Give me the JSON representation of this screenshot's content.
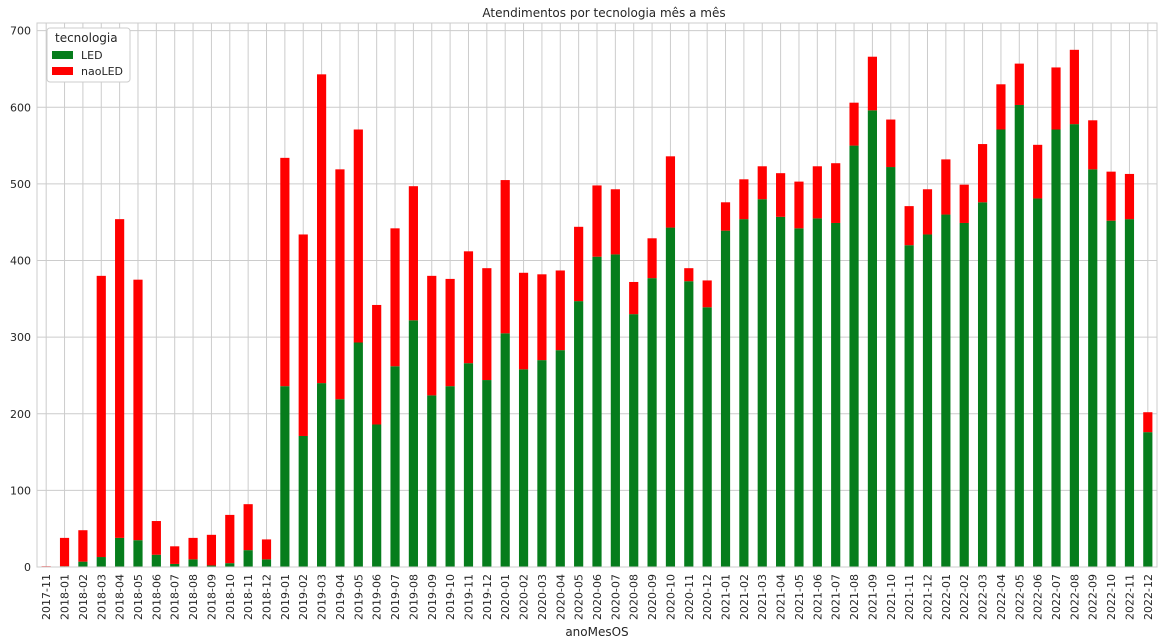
{
  "chart_data": {
    "type": "bar",
    "stacked": true,
    "title": "Atendimentos por tecnologia mês a mês",
    "xlabel": "anoMesOS",
    "ylabel": "",
    "ylim": [
      0,
      710
    ],
    "yticks": [
      0,
      100,
      200,
      300,
      400,
      500,
      600,
      700
    ],
    "grid": true,
    "legend": {
      "title": "tecnologia",
      "placement": "top-left"
    },
    "categories": [
      "2017-11",
      "2018-01",
      "2018-02",
      "2018-03",
      "2018-04",
      "2018-05",
      "2018-06",
      "2018-07",
      "2018-08",
      "2018-09",
      "2018-10",
      "2018-11",
      "2018-12",
      "2019-01",
      "2019-02",
      "2019-03",
      "2019-04",
      "2019-05",
      "2019-06",
      "2019-07",
      "2019-08",
      "2019-09",
      "2019-10",
      "2019-11",
      "2019-12",
      "2020-01",
      "2020-02",
      "2020-03",
      "2020-04",
      "2020-05",
      "2020-06",
      "2020-07",
      "2020-08",
      "2020-09",
      "2020-10",
      "2020-11",
      "2020-12",
      "2021-01",
      "2021-02",
      "2021-03",
      "2021-04",
      "2021-05",
      "2021-06",
      "2021-07",
      "2021-08",
      "2021-09",
      "2021-10",
      "2021-11",
      "2021-12",
      "2022-01",
      "2022-02",
      "2022-03",
      "2022-04",
      "2022-05",
      "2022-06",
      "2022-07",
      "2022-08",
      "2022-09",
      "2022-10",
      "2022-11",
      "2022-12"
    ],
    "series": [
      {
        "name": "LED",
        "color": "#067d1c",
        "values": [
          0,
          1,
          7,
          13,
          38,
          35,
          16,
          4,
          10,
          2,
          5,
          22,
          10,
          236,
          171,
          240,
          219,
          293,
          186,
          262,
          322,
          224,
          236,
          266,
          244,
          305,
          258,
          270,
          283,
          347,
          405,
          408,
          330,
          377,
          443,
          373,
          339,
          439,
          454,
          480,
          457,
          442,
          455,
          449,
          550,
          596,
          522,
          420,
          434,
          460,
          449,
          476,
          571,
          603,
          481,
          571,
          578,
          519,
          452,
          454,
          176
        ]
      },
      {
        "name": "naoLED",
        "color": "#ff0000",
        "values": [
          1,
          37,
          41,
          367,
          416,
          340,
          44,
          23,
          28,
          40,
          63,
          60,
          26,
          298,
          263,
          403,
          300,
          278,
          156,
          180,
          175,
          156,
          140,
          146,
          146,
          200,
          126,
          112,
          104,
          97,
          93,
          85,
          42,
          52,
          93,
          17,
          35,
          37,
          52,
          43,
          57,
          61,
          68,
          78,
          56,
          70,
          62,
          51,
          59,
          72,
          50,
          76,
          59,
          54,
          70,
          81,
          97,
          64,
          64,
          59,
          26
        ]
      }
    ]
  }
}
